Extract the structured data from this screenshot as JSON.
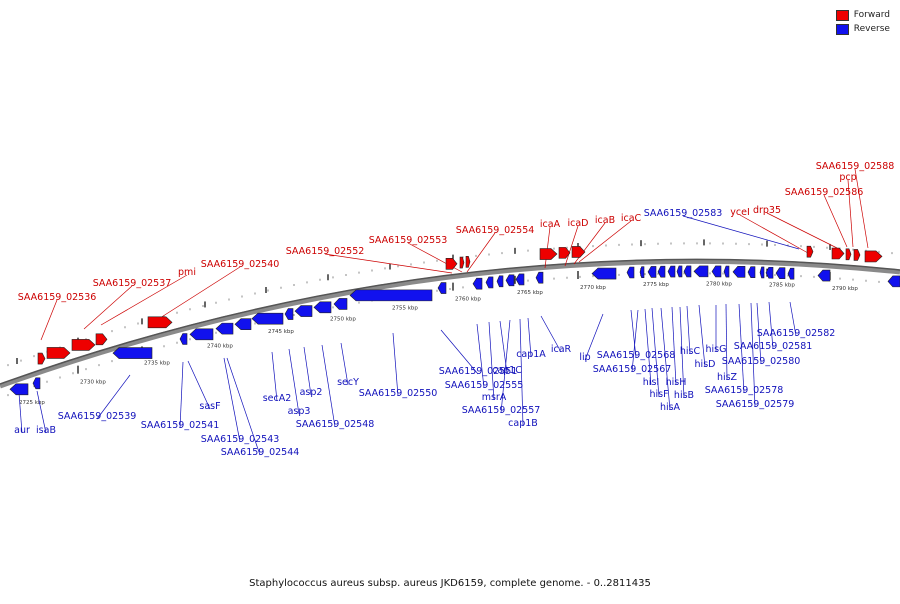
{
  "legend": {
    "forward_label": "Forward",
    "reverse_label": "Reverse",
    "forward_color": "#ee0000",
    "reverse_color": "#1111ee"
  },
  "caption": "Staphylococcus aureus subsp. aureus JKD6159, complete genome. - 0..2811435",
  "map": {
    "type": "linear-genome-map",
    "ticks_major": [
      "2725 kbp",
      "2730 kbp",
      "2735 kbp",
      "2740 kbp",
      "2745 kbp",
      "2750 kbp",
      "2755 kbp",
      "2760 kbp",
      "2765 kbp",
      "2770 kbp",
      "2775 kbp",
      "2780 kbp",
      "2785 kbp",
      "2790 kbp"
    ],
    "genes": {
      "forward": [
        "SAA6159_02536",
        "SAA6159_02537",
        "pmi",
        "SAA6159_02540",
        "SAA6159_02552",
        "SAA6159_02553",
        "SAA6159_02554",
        "icaA",
        "icaD",
        "icaB",
        "icaC",
        "yceI",
        "drp35",
        "SAA6159_02586",
        "pcp",
        "SAA6159_02588"
      ],
      "reverse": [
        "aur",
        "isaB",
        "SAA6159_02539",
        "SAA6159_02541",
        "sasF",
        "SAA6159_02543",
        "SAA6159_02544",
        "secA2",
        "asp3",
        "asp2",
        "SAA6159_02548",
        "secY",
        "SAA6159_02550",
        "SAA6159_02551",
        "SAA6159_02555",
        "msrA",
        "cap1C",
        "SAA6159_02557",
        "cap1B",
        "cap1A",
        "icaR",
        "lip",
        "SAA6159_02568",
        "SAA6159_02567",
        "hisI",
        "hisF",
        "hisA",
        "hisH",
        "hisB",
        "hisC",
        "hisD",
        "hisG",
        "hisZ",
        "SAA6159_02578",
        "SAA6159_02579",
        "SAA6159_02580",
        "SAA6159_02581",
        "SAA6159_02582",
        "SAA6159_02583"
      ]
    }
  }
}
